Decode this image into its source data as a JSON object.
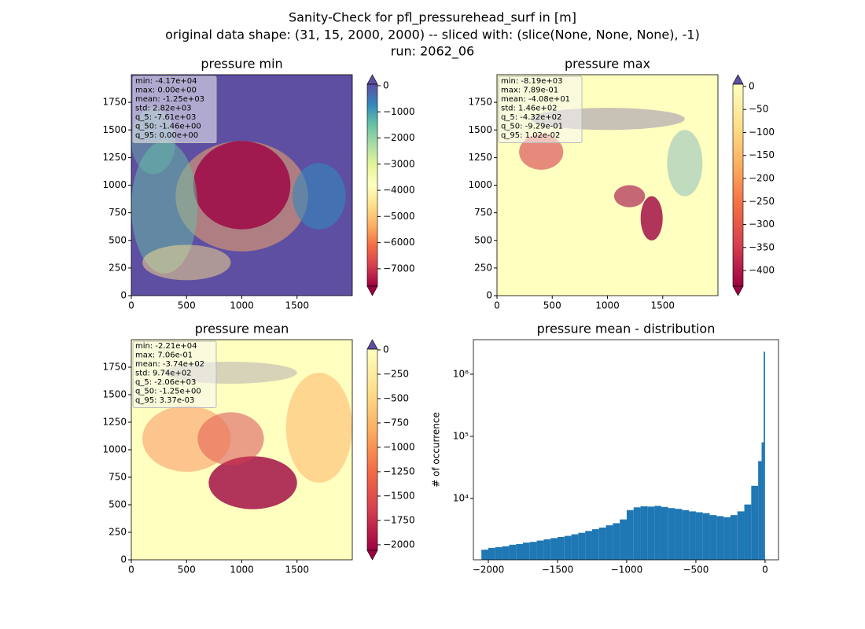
{
  "suptitle": [
    "Sanity-Check for pfl_pressurehead_surf in [m]",
    "original data shape: (31, 15, 2000, 2000) -- sliced with: (slice(None, None, None), -1)",
    "run: 2062_06"
  ],
  "chart_data": [
    {
      "type": "heatmap",
      "title": "pressure min",
      "stats": [
        "min: -4.17e+04",
        "max: 0.00e+00",
        "mean: -1.25e+03",
        "std: 2.82e+03",
        "q_5: -7.61e+03",
        "q_50: -1.46e+00",
        "q_95: 0.00e+00"
      ],
      "xlim": [
        0,
        2000
      ],
      "ylim": [
        0,
        2000
      ],
      "xticks": [
        0,
        500,
        1000,
        1500
      ],
      "yticks": [
        0,
        250,
        500,
        750,
        1000,
        1250,
        1500,
        1750
      ],
      "clim": [
        -7665,
        60
      ],
      "cticks": [
        {
          "value": 0,
          "label": "0"
        },
        {
          "value": -1000,
          "label": "−1000"
        },
        {
          "value": -2000,
          "label": "−2000"
        },
        {
          "value": -3000,
          "label": "−3000"
        },
        {
          "value": -4000,
          "label": "−4000"
        },
        {
          "value": -5000,
          "label": "−5000"
        },
        {
          "value": -6000,
          "label": "−6000"
        },
        {
          "value": -7000,
          "label": "−7000"
        }
      ],
      "colors": [
        "#9e0142",
        "#d53e4f",
        "#f46d43",
        "#fdae61",
        "#fee08b",
        "#ffffbf",
        "#e6f598",
        "#abdda4",
        "#66c2a5",
        "#3288bd",
        "#5e4fa2"
      ]
    },
    {
      "type": "heatmap",
      "title": "pressure max",
      "stats": [
        "min: -8.19e+03",
        "max: 7.89e-01",
        "mean: -4.08e+01",
        "std: 1.46e+02",
        "q_5: -4.32e+02",
        "q_50: -9.29e-01",
        "q_95: 1.02e-02"
      ],
      "xlim": [
        0,
        2000
      ],
      "ylim": [
        0,
        2000
      ],
      "xticks": [
        0,
        500,
        1000,
        1500
      ],
      "yticks": [
        0,
        250,
        500,
        750,
        1000,
        1250,
        1500,
        1750
      ],
      "clim": [
        -434,
        5
      ],
      "cticks": [
        {
          "value": 0,
          "label": "0"
        },
        {
          "value": -50,
          "label": "−50"
        },
        {
          "value": -100,
          "label": "−100"
        },
        {
          "value": -150,
          "label": "−150"
        },
        {
          "value": -200,
          "label": "−200"
        },
        {
          "value": -250,
          "label": "−250"
        },
        {
          "value": -300,
          "label": "−300"
        },
        {
          "value": -350,
          "label": "−350"
        },
        {
          "value": -400,
          "label": "−400"
        }
      ],
      "colors": [
        "#9e0142",
        "#d53e4f",
        "#f46d43",
        "#fdae61",
        "#fee08b",
        "#ffffbf"
      ]
    },
    {
      "type": "heatmap",
      "title": "pressure mean",
      "stats": [
        "min: -2.21e+04",
        "max: 7.06e-01",
        "mean: -3.74e+02",
        "std: 9.74e+02",
        "q_5: -2.06e+03",
        "q_50: -1.25e+00",
        "q_95: 3.37e-03"
      ],
      "xlim": [
        0,
        2000
      ],
      "ylim": [
        0,
        2000
      ],
      "xticks": [
        0,
        500,
        1000,
        1500
      ],
      "yticks": [
        0,
        250,
        500,
        750,
        1000,
        1250,
        1500,
        1750
      ],
      "clim": [
        -2057,
        8
      ],
      "cticks": [
        {
          "value": 0,
          "label": "0"
        },
        {
          "value": -250,
          "label": "−250"
        },
        {
          "value": -500,
          "label": "−500"
        },
        {
          "value": -750,
          "label": "−750"
        },
        {
          "value": -1000,
          "label": "−1000"
        },
        {
          "value": -1250,
          "label": "−1250"
        },
        {
          "value": -1500,
          "label": "−1500"
        },
        {
          "value": -1750,
          "label": "−1750"
        },
        {
          "value": -2000,
          "label": "−2000"
        }
      ],
      "colors": [
        "#9e0142",
        "#d53e4f",
        "#f46d43",
        "#fdae61",
        "#fee08b",
        "#ffffbf"
      ]
    },
    {
      "type": "histogram",
      "title": "pressure mean - distribution",
      "ylabel": "# of occurrence",
      "color": "#1f77b4",
      "log_y": true,
      "bins": [
        -2050,
        -2000,
        -1950,
        -1900,
        -1850,
        -1800,
        -1750,
        -1700,
        -1650,
        -1600,
        -1550,
        -1500,
        -1450,
        -1400,
        -1350,
        -1300,
        -1250,
        -1200,
        -1150,
        -1100,
        -1050,
        -1000,
        -950,
        -900,
        -850,
        -800,
        -750,
        -700,
        -650,
        -600,
        -550,
        -500,
        -450,
        -400,
        -350,
        -300,
        -250,
        -200,
        -150,
        -100,
        -50,
        -25,
        -10,
        0
      ],
      "values": [
        1500,
        1600,
        1650,
        1700,
        1800,
        1850,
        1950,
        2000,
        2100,
        2200,
        2300,
        2400,
        2500,
        2650,
        2800,
        3000,
        3200,
        3400,
        3700,
        4000,
        4600,
        6500,
        7200,
        7500,
        7400,
        7600,
        7300,
        7000,
        6800,
        6500,
        6200,
        6000,
        5800,
        5400,
        5200,
        5000,
        5400,
        6200,
        8000,
        16000,
        40000,
        80000,
        2300000
      ],
      "xlim": [
        -2108,
        97
      ],
      "ylim": [
        1030,
        3600000
      ],
      "xticks": [
        {
          "value": -2000,
          "label": "−2000"
        },
        {
          "value": -1500,
          "label": "−1500"
        },
        {
          "value": -1000,
          "label": "−1000"
        },
        {
          "value": -500,
          "label": "−500"
        },
        0
      ],
      "yticks": [
        {
          "value": 10000,
          "label": "10⁴"
        },
        {
          "value": 100000,
          "label": "10⁵"
        },
        {
          "value": 1000000,
          "label": "10⁶"
        }
      ]
    }
  ]
}
